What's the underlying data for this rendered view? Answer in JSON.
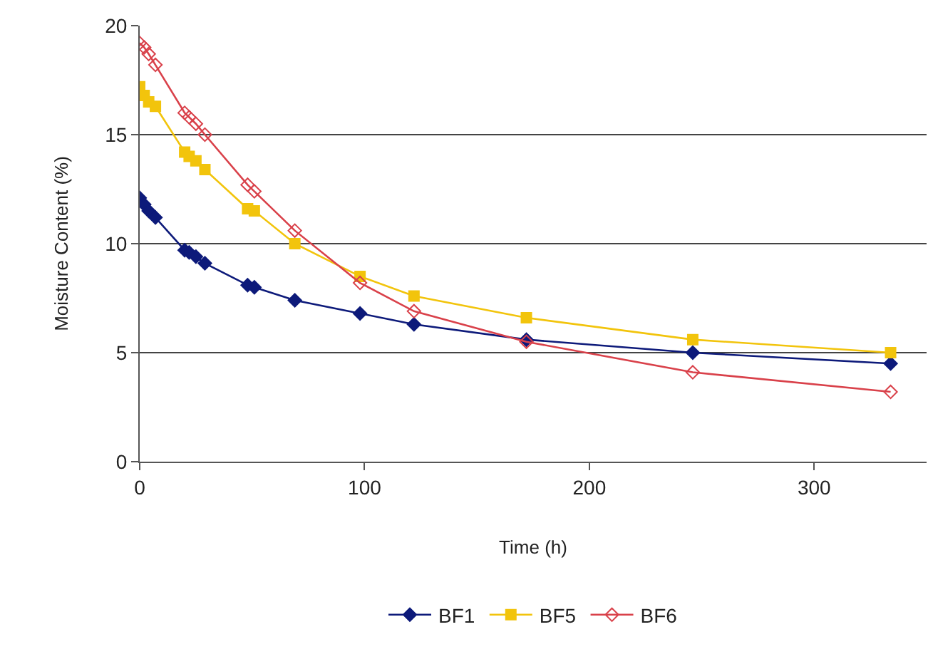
{
  "chart_data": {
    "type": "line",
    "xlabel": "Time (h)",
    "ylabel": "Moisture Content (%)",
    "x": [
      0,
      2,
      4,
      7,
      20,
      22,
      25,
      29,
      48,
      51,
      69,
      98,
      122,
      172,
      246,
      334
    ],
    "xlim": [
      0,
      350
    ],
    "xticks": [
      0,
      100,
      200,
      300
    ],
    "ylim": [
      0,
      20
    ],
    "yticks": [
      0,
      5,
      10,
      15,
      20
    ],
    "grid": "y",
    "legend": "bottom",
    "series": [
      {
        "name": "BF1",
        "color": "#0d1a7a",
        "marker": "diamond",
        "values": [
          12.1,
          11.8,
          11.5,
          11.2,
          9.7,
          9.6,
          9.4,
          9.1,
          8.1,
          8.0,
          7.4,
          6.8,
          6.3,
          5.6,
          5.0,
          4.5
        ]
      },
      {
        "name": "BF5",
        "color": "#f2c40c",
        "marker": "square",
        "values": [
          17.2,
          16.8,
          16.5,
          16.3,
          14.2,
          14.0,
          13.8,
          13.4,
          11.6,
          11.5,
          10.0,
          8.5,
          7.6,
          6.6,
          5.6,
          5.0
        ]
      },
      {
        "name": "BF6",
        "color": "#d9414a",
        "marker": "diamond-open",
        "values": [
          19.2,
          19.0,
          18.7,
          18.2,
          16.0,
          15.8,
          15.5,
          15.0,
          12.7,
          12.4,
          10.6,
          8.2,
          6.9,
          5.5,
          4.1,
          3.2
        ]
      }
    ]
  }
}
